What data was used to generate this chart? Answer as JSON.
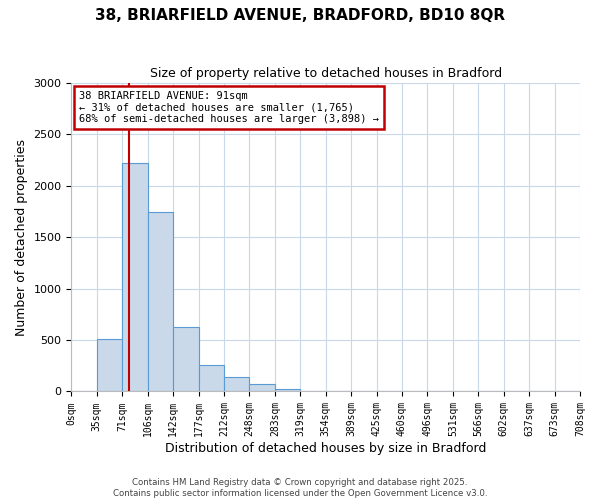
{
  "title": "38, BRIARFIELD AVENUE, BRADFORD, BD10 8QR",
  "subtitle": "Size of property relative to detached houses in Bradford",
  "xlabel": "Distribution of detached houses by size in Bradford",
  "ylabel": "Number of detached properties",
  "bar_values": [
    0,
    510,
    2220,
    1750,
    630,
    260,
    140,
    70,
    20,
    0,
    0,
    0,
    0,
    0,
    0,
    0,
    0,
    0,
    0,
    0
  ],
  "bin_labels": [
    "0sqm",
    "35sqm",
    "71sqm",
    "106sqm",
    "142sqm",
    "177sqm",
    "212sqm",
    "248sqm",
    "283sqm",
    "319sqm",
    "354sqm",
    "389sqm",
    "425sqm",
    "460sqm",
    "496sqm",
    "531sqm",
    "566sqm",
    "602sqm",
    "637sqm",
    "673sqm",
    "708sqm"
  ],
  "bar_color": "#c9d9ea",
  "bar_edge_color": "#5b9bd5",
  "vline_x": 2.25,
  "vline_color": "#c00000",
  "annotation_title": "38 BRIARFIELD AVENUE: 91sqm",
  "annotation_line1": "← 31% of detached houses are smaller (1,765)",
  "annotation_line2": "68% of semi-detached houses are larger (3,898) →",
  "annotation_box_color": "#c00000",
  "ylim": [
    0,
    3000
  ],
  "yticks": [
    0,
    500,
    1000,
    1500,
    2000,
    2500,
    3000
  ],
  "background_color": "#ffffff",
  "grid_color": "#c8d8e8",
  "footer_line1": "Contains HM Land Registry data © Crown copyright and database right 2025.",
  "footer_line2": "Contains public sector information licensed under the Open Government Licence v3.0."
}
